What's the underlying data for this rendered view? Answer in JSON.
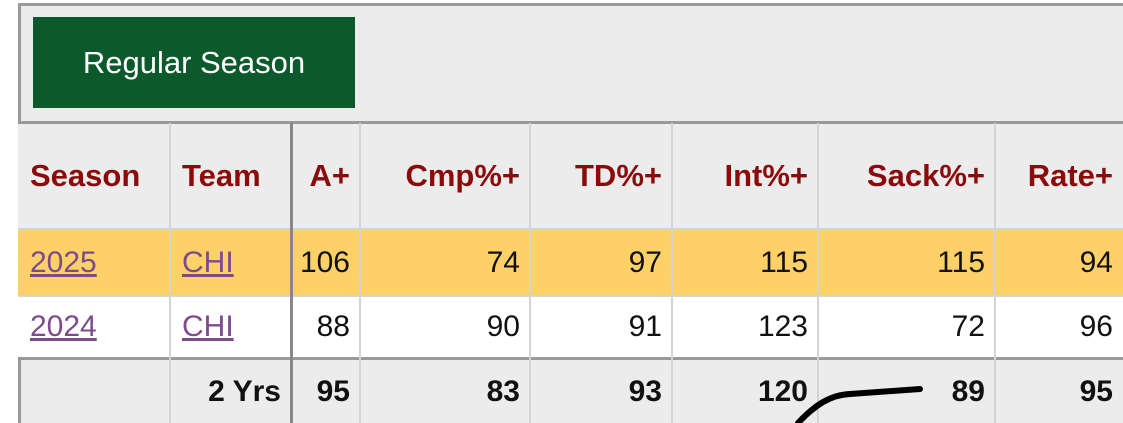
{
  "header": {
    "title": "Regular Season"
  },
  "table": {
    "columns": [
      "Season",
      "Team",
      "A+",
      "Cmp%+",
      "TD%+",
      "Int%+",
      "Sack%+",
      "Rate+"
    ],
    "rows": [
      [
        "2025",
        "CHI",
        106,
        74,
        97,
        115,
        115,
        94
      ],
      [
        "2024",
        "CHI",
        88,
        90,
        91,
        123,
        72,
        96
      ]
    ],
    "footer": {
      "label": "2 Yrs",
      "values": [
        95,
        83,
        93,
        120,
        89,
        95
      ]
    }
  }
}
